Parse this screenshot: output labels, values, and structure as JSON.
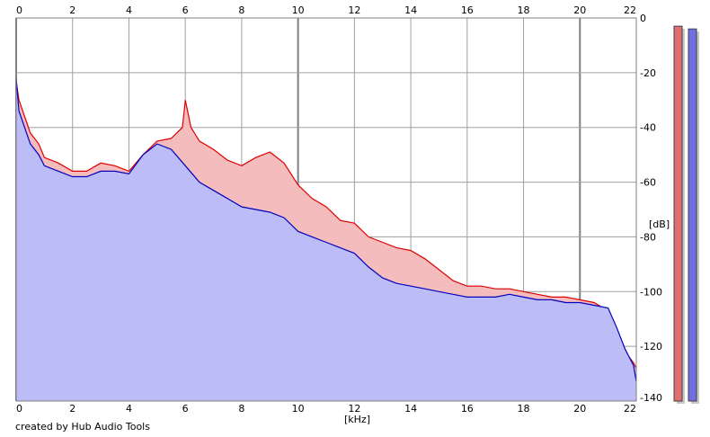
{
  "credit": "created by Hub Audio Tools",
  "chart_data": {
    "type": "area",
    "xlabel": "[kHz]",
    "ylabel": "[dB]",
    "xlim": [
      0,
      22
    ],
    "ylim": [
      -140,
      0
    ],
    "grid": true,
    "x_ticks": [
      0,
      2,
      4,
      6,
      8,
      10,
      12,
      14,
      16,
      18,
      20,
      22
    ],
    "x_tick_labels": [
      "0",
      "2",
      "4",
      "6",
      "8",
      "10",
      "12",
      "14",
      "16",
      "18",
      "20",
      "22"
    ],
    "y_ticks": [
      0,
      -20,
      -40,
      -60,
      -80,
      -100,
      -120,
      -140
    ],
    "y_tick_labels": [
      "0",
      "-20",
      "-40",
      "-60",
      "-80",
      "-100",
      "-120",
      "-140"
    ],
    "colors": {
      "red_line": "#e00000",
      "red_fill": "#f4bcbc",
      "blue_line": "#0000c0",
      "blue_fill": "#bcbcf6",
      "grid": "#a0a0a0",
      "grid_major": "#808080"
    },
    "series": [
      {
        "color": "red",
        "x": [
          0,
          0.1,
          0.3,
          0.5,
          0.8,
          1.0,
          1.5,
          2.0,
          2.5,
          3.0,
          3.5,
          4.0,
          4.5,
          5.0,
          5.5,
          5.9,
          6.0,
          6.2,
          6.5,
          7.0,
          7.5,
          8.0,
          8.5,
          9.0,
          9.5,
          10.0,
          10.5,
          11.0,
          11.5,
          12.0,
          12.5,
          13.0,
          13.5,
          14.0,
          14.5,
          15.0,
          15.5,
          16.0,
          16.5,
          17.0,
          17.5,
          18.0,
          18.5,
          19.0,
          19.5,
          20.0,
          20.5,
          21.0,
          21.3,
          21.6,
          21.9,
          22.0
        ],
        "y": [
          -23,
          -30,
          -36,
          -42,
          -46,
          -51,
          -53,
          -56,
          -56,
          -53,
          -54,
          -56,
          -50,
          -45,
          -44,
          -40,
          -30,
          -40,
          -45,
          -48,
          -52,
          -54,
          -51,
          -49,
          -53,
          -61,
          -66,
          -69,
          -74,
          -75,
          -80,
          -82,
          -84,
          -85,
          -88,
          -92,
          -96,
          -98,
          -98,
          -99,
          -99,
          -100,
          -101,
          -102,
          -102,
          -103,
          -104,
          -107,
          -115,
          -122,
          -126,
          -128
        ]
      },
      {
        "color": "blue",
        "x": [
          0,
          0.1,
          0.3,
          0.5,
          0.8,
          1.0,
          1.5,
          2.0,
          2.5,
          3.0,
          3.5,
          4.0,
          4.5,
          5.0,
          5.5,
          6.0,
          6.5,
          7.0,
          7.5,
          8.0,
          8.5,
          9.0,
          9.5,
          10.0,
          10.5,
          11.0,
          11.5,
          12.0,
          12.5,
          13.0,
          13.5,
          14.0,
          14.5,
          15.0,
          15.5,
          16.0,
          16.5,
          17.0,
          17.5,
          18.0,
          18.5,
          19.0,
          19.5,
          20.0,
          20.5,
          21.0,
          21.3,
          21.6,
          21.9,
          22.0
        ],
        "y": [
          -22,
          -34,
          -40,
          -46,
          -50,
          -54,
          -56,
          -58,
          -58,
          -56,
          -56,
          -57,
          -50,
          -46,
          -48,
          -54,
          -60,
          -63,
          -66,
          -69,
          -70,
          -71,
          -73,
          -78,
          -80,
          -82,
          -84,
          -86,
          -91,
          -95,
          -97,
          -98,
          -99,
          -100,
          -101,
          -102,
          -102,
          -102,
          -101,
          -102,
          -103,
          -103,
          -104,
          -104,
          -105,
          -106,
          -113,
          -121,
          -127,
          -133
        ]
      }
    ],
    "level_meters": [
      {
        "color": "red",
        "value": -3
      },
      {
        "color": "blue",
        "value": -4
      }
    ]
  }
}
